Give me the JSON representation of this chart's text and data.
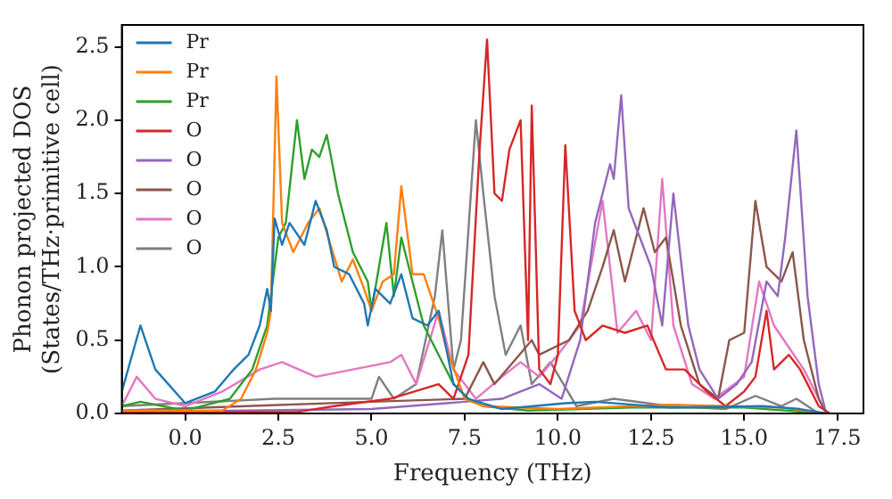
{
  "chart_data": {
    "type": "line",
    "xlabel": "Frequency (THz)",
    "ylabel": "Phonon projected DOS\n(States/THz·primitive cell)",
    "xlim": [
      -1.7,
      18.2
    ],
    "ylim": [
      0,
      2.65
    ],
    "xticks": [
      {
        "value": 0,
        "label": "0.0"
      },
      2.5,
      {
        "value": 5,
        "label": "5.0"
      },
      7.5,
      {
        "value": 10,
        "label": "10.0"
      },
      12.5,
      {
        "value": 15,
        "label": "15.0"
      },
      17.5
    ],
    "yticks": [
      {
        "value": 0,
        "label": "0.0"
      },
      0.5,
      {
        "value": 1,
        "label": "1.0"
      },
      1.5,
      {
        "value": 2,
        "label": "2.0"
      },
      2.5
    ],
    "legend": "top left",
    "grid": false,
    "marker": "none",
    "line_style": "solid",
    "series": [
      {
        "name": "Pr",
        "color": "#1f77b4",
        "x": [
          -1.7,
          -1.2,
          -0.8,
          0,
          0.8,
          1.3,
          1.7,
          2.0,
          2.2,
          2.3,
          2.4,
          2.6,
          2.8,
          3.2,
          3.5,
          3.8,
          4.0,
          4.4,
          4.8,
          4.9,
          5.1,
          5.5,
          5.8,
          6.1,
          6.5,
          6.8,
          7.0,
          7.2,
          7.6,
          8.5,
          10.2,
          11.0,
          13.0,
          15.5,
          16.5,
          17.2
        ],
        "values": [
          0.15,
          0.6,
          0.3,
          0.07,
          0.15,
          0.3,
          0.4,
          0.6,
          0.85,
          0.7,
          1.33,
          1.15,
          1.3,
          1.15,
          1.45,
          1.25,
          1.0,
          0.95,
          0.75,
          0.6,
          0.85,
          0.75,
          0.95,
          0.65,
          0.6,
          0.7,
          0.45,
          0.2,
          0.1,
          0.03,
          0.07,
          0.08,
          0.04,
          0.05,
          0.03,
          0
        ]
      },
      {
        "name": "Pr",
        "color": "#ff7f0e",
        "x": [
          -1.7,
          0,
          1.0,
          1.5,
          1.9,
          2.2,
          2.3,
          2.45,
          2.6,
          2.9,
          3.3,
          3.6,
          3.9,
          4.2,
          4.5,
          4.8,
          5.0,
          5.3,
          5.6,
          5.8,
          6.1,
          6.4,
          6.8,
          7.0,
          7.5,
          8.0,
          10.0,
          13.0,
          16.0,
          17.2
        ],
        "values": [
          0.02,
          0.02,
          0.02,
          0.1,
          0.3,
          0.55,
          0.7,
          2.3,
          1.3,
          1.1,
          1.3,
          1.4,
          1.15,
          0.9,
          1.05,
          0.85,
          0.7,
          0.9,
          0.95,
          1.55,
          0.95,
          0.95,
          0.65,
          0.45,
          0.1,
          0.05,
          0.03,
          0.06,
          0.04,
          0
        ]
      },
      {
        "name": "Pr",
        "color": "#2ca02c",
        "x": [
          -1.7,
          -1.2,
          0,
          1.2,
          1.8,
          2.2,
          2.5,
          2.7,
          3.0,
          3.2,
          3.4,
          3.6,
          3.8,
          4.1,
          4.5,
          4.9,
          5.0,
          5.4,
          5.6,
          5.8,
          6.1,
          6.4,
          6.8,
          7.2,
          7.6,
          8.0,
          9.2,
          12.0,
          15.0,
          17.2
        ],
        "values": [
          0.05,
          0.08,
          0.02,
          0.1,
          0.3,
          0.6,
          1.2,
          1.3,
          2.0,
          1.6,
          1.8,
          1.75,
          1.9,
          1.5,
          1.1,
          0.9,
          0.7,
          1.3,
          0.8,
          1.2,
          0.9,
          0.6,
          0.4,
          0.2,
          0.1,
          0.05,
          0.02,
          0.04,
          0.04,
          0
        ]
      },
      {
        "name": "O",
        "color": "#d62728",
        "x": [
          -1.7,
          3.0,
          4.0,
          5.5,
          6.8,
          7.2,
          7.6,
          7.9,
          8.1,
          8.3,
          8.5,
          8.7,
          9.0,
          9.2,
          9.3,
          9.5,
          9.8,
          10.0,
          10.2,
          10.45,
          10.75,
          11.2,
          11.8,
          12.4,
          12.9,
          13.4,
          14.0,
          14.5,
          15.0,
          15.3,
          15.6,
          15.8,
          16.2,
          16.5,
          17.0,
          17.3
        ],
        "values": [
          0.01,
          0.01,
          0.05,
          0.1,
          0.2,
          0.1,
          0.4,
          1.8,
          2.55,
          1.5,
          1.45,
          1.8,
          2.0,
          0.5,
          2.1,
          0.3,
          0.2,
          0.4,
          1.83,
          0.7,
          0.5,
          0.6,
          0.55,
          0.6,
          0.3,
          0.3,
          0.15,
          0.05,
          0.15,
          0.25,
          0.7,
          0.3,
          0.4,
          0.3,
          0.05,
          0
        ]
      },
      {
        "name": "O",
        "color": "#9467bd",
        "x": [
          -1.7,
          5.0,
          8.5,
          9.5,
          10.1,
          10.6,
          11.0,
          11.4,
          11.5,
          11.7,
          11.9,
          12.5,
          12.8,
          13.1,
          13.5,
          13.8,
          14.3,
          14.8,
          15.2,
          15.6,
          15.9,
          16.1,
          16.4,
          16.7,
          17.0,
          17.2
        ],
        "values": [
          0.01,
          0.03,
          0.1,
          0.2,
          0.1,
          0.5,
          1.3,
          1.7,
          1.6,
          2.17,
          1.4,
          1.0,
          0.6,
          1.5,
          0.6,
          0.3,
          0.1,
          0.2,
          0.35,
          0.9,
          0.8,
          1.2,
          1.93,
          0.8,
          0.2,
          0
        ]
      },
      {
        "name": "O",
        "color": "#8c564b",
        "x": [
          -1.7,
          5.0,
          7.5,
          8.0,
          8.3,
          9.3,
          9.5,
          10.3,
          10.8,
          11.2,
          11.5,
          11.8,
          12.3,
          12.6,
          12.9,
          13.3,
          13.8,
          14.3,
          14.6,
          15.0,
          15.3,
          15.6,
          16.0,
          16.3,
          16.6,
          17.0,
          17.2
        ],
        "values": [
          0.02,
          0.08,
          0.1,
          0.35,
          0.2,
          0.5,
          0.4,
          0.5,
          0.7,
          1.0,
          1.25,
          0.9,
          1.4,
          1.1,
          1.2,
          0.6,
          0.2,
          0.1,
          0.5,
          0.55,
          1.45,
          1.0,
          0.9,
          1.1,
          0.5,
          0.1,
          0
        ]
      },
      {
        "name": "O",
        "color": "#e377c2",
        "x": [
          -1.7,
          -1.3,
          -0.8,
          0,
          1.0,
          2.0,
          2.6,
          3.5,
          4.5,
          5.5,
          5.8,
          6.2,
          6.8,
          7.2,
          7.8,
          8.5,
          9.0,
          9.5,
          10.0,
          10.6,
          11.2,
          11.6,
          12.1,
          12.5,
          12.8,
          13.1,
          13.6,
          14.2,
          15.0,
          15.4,
          15.8,
          16.2,
          16.6,
          17.1
        ],
        "values": [
          0.05,
          0.25,
          0.1,
          0.05,
          0.15,
          0.3,
          0.35,
          0.25,
          0.3,
          0.35,
          0.4,
          0.2,
          0.7,
          0.3,
          0.1,
          0.25,
          0.35,
          0.25,
          0.4,
          0.6,
          1.45,
          0.55,
          0.7,
          0.5,
          1.6,
          0.6,
          0.2,
          0.1,
          0.25,
          0.9,
          0.6,
          0.45,
          0.3,
          0.05
        ]
      },
      {
        "name": "O",
        "color": "#7f7f7f",
        "x": [
          -1.7,
          2.4,
          5.0,
          5.2,
          5.6,
          6.2,
          6.7,
          6.9,
          7.2,
          7.4,
          7.8,
          8.0,
          8.3,
          8.6,
          9.0,
          9.3,
          9.8,
          10.5,
          11.5,
          13.0,
          14.5,
          15.3,
          16.0,
          16.4,
          17.0
        ],
        "values": [
          0.05,
          0.1,
          0.1,
          0.25,
          0.1,
          0.2,
          0.8,
          1.25,
          0.3,
          0.5,
          2.0,
          1.5,
          0.8,
          0.4,
          0.6,
          0.2,
          0.35,
          0.05,
          0.1,
          0.05,
          0.03,
          0.12,
          0.05,
          0.1,
          0
        ]
      }
    ]
  }
}
